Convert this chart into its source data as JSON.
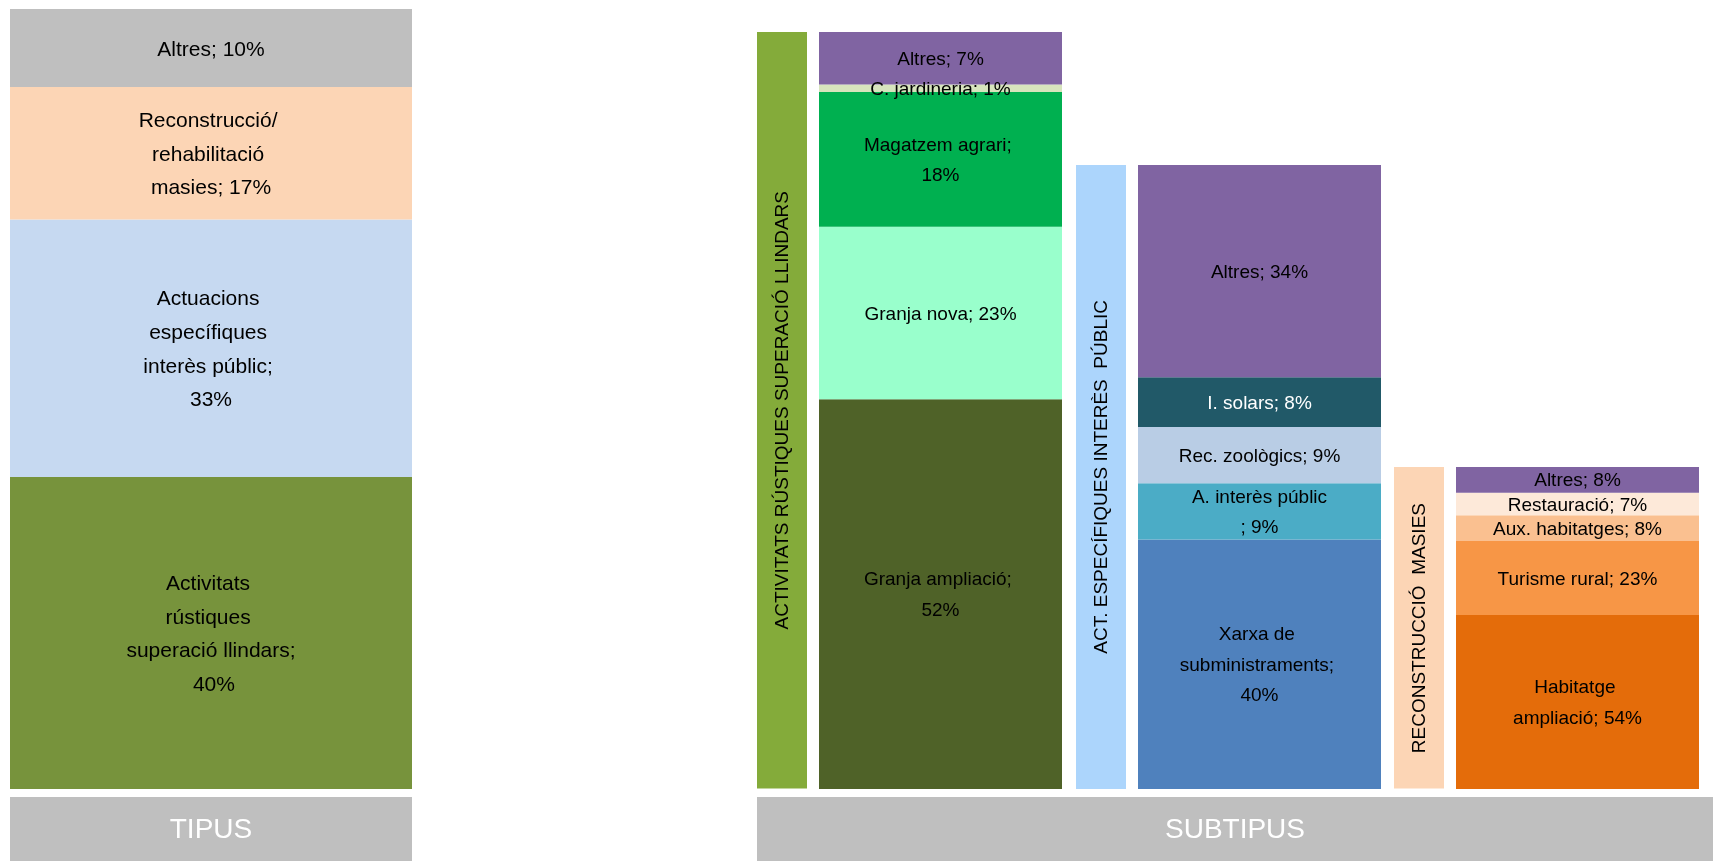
{
  "chart_data": [
    {
      "type": "bar",
      "stacked": true,
      "xlabel": "TIPUS",
      "categories": [
        null
      ],
      "series": [
        {
          "color": "#77933c",
          "values": [
            40
          ],
          "value_labels": [
            "Activitats rústiques superació llindars; 40%"
          ]
        },
        {
          "color": "#c6d9f1",
          "values": [
            33
          ],
          "value_labels": [
            "Actuacions específiques interès públic; 33%"
          ]
        },
        {
          "color": "#fcd5b5",
          "values": [
            17
          ],
          "value_labels": [
            "Reconstrucció/ rehabilitació masies; 17%"
          ]
        },
        {
          "color": "#bfbfbf",
          "values": [
            10
          ],
          "value_labels": [
            "Altres; 10%"
          ]
        }
      ]
    },
    {
      "type": "bar",
      "stacked": true,
      "categories": [
        null
      ],
      "ylabel": "ACTIVITATS RÚSTIQUES SUPERACIÓ LLINDARS",
      "series": [
        {
          "color": "#4f6228",
          "values": [
            52
          ],
          "value_labels": [
            "Granja ampliació; 52%"
          ]
        },
        {
          "color": "#99ffcc",
          "values": [
            23
          ],
          "value_labels": [
            "Granja nova; 23%"
          ]
        },
        {
          "color": "#00b050",
          "values": [
            18
          ],
          "value_labels": [
            "Magatzem agrari; 18%"
          ]
        },
        {
          "color": "#d7e4bd",
          "values": [
            1
          ],
          "value_labels": [
            "C. jardineria; 1%"
          ]
        },
        {
          "color": "#8064a2",
          "values": [
            7
          ],
          "value_labels": [
            "Altres; 7%"
          ]
        }
      ]
    },
    {
      "type": "bar",
      "stacked": true,
      "categories": [
        null
      ],
      "ylabel": "ACT. ESPECÍFIQUES INTERÈS  PÚBLIC",
      "series": [
        {
          "color": "#4f81bd",
          "values": [
            40
          ],
          "value_labels": [
            "Xarxa de subministraments; 40%"
          ]
        },
        {
          "color": "#4bacc6",
          "values": [
            9
          ],
          "value_labels": [
            "A. interès públic; 9%"
          ]
        },
        {
          "color": "#b9cde5",
          "values": [
            9
          ],
          "value_labels": [
            "Rec. zoològics; 9%"
          ]
        },
        {
          "color": "#215968",
          "values": [
            8
          ],
          "value_labels": [
            "I. solars; 8%"
          ]
        },
        {
          "color": "#8064a2",
          "values": [
            34
          ],
          "value_labels": [
            "Altres; 34%"
          ]
        }
      ]
    },
    {
      "type": "bar",
      "stacked": true,
      "categories": [
        null
      ],
      "ylabel": "RECONSTRUCCIÓ  MASIES",
      "series": [
        {
          "color": "#e46c0a",
          "values": [
            54
          ],
          "value_labels": [
            "Habitatge ampliació; 54%"
          ]
        },
        {
          "color": "#f79646",
          "values": [
            23
          ],
          "value_labels": [
            "Turisme rural; 23%"
          ]
        },
        {
          "color": "#fac090",
          "values": [
            8
          ],
          "value_labels": [
            "Aux. habitatges; 8%"
          ]
        },
        {
          "color": "#fde9d9",
          "values": [
            7
          ],
          "value_labels": [
            "Restauració; 7%"
          ]
        },
        {
          "color": "#8064a2",
          "values": [
            8
          ],
          "value_labels": [
            "Altres; 8%"
          ]
        }
      ]
    },
    {
      "type": "other",
      "title": "SUBTIPUS"
    }
  ]
}
